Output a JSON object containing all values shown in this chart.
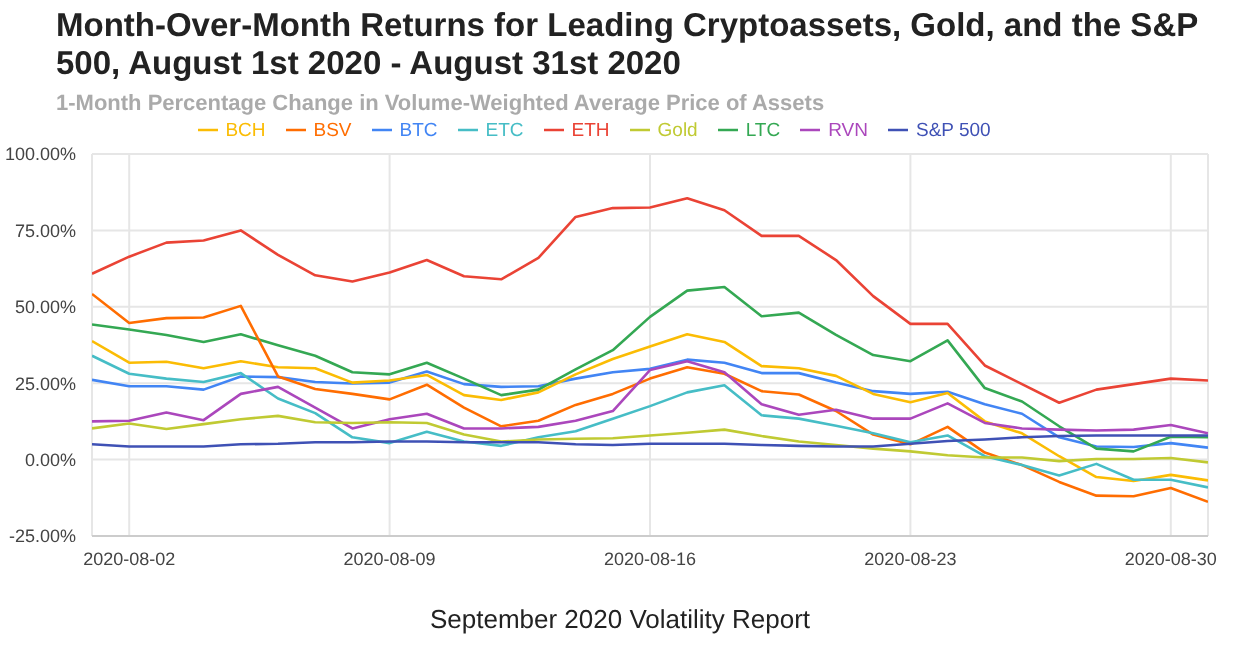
{
  "chart_data": {
    "type": "line",
    "title": "Month-Over-Month Returns for Leading Cryptoassets, Gold, and the S&P 500, August 1st 2020 - August 31st 2020",
    "subtitle": "1-Month Percentage Change in Volume-Weighted Average Price of Assets",
    "x": [
      "2020-08-01",
      "2020-08-02",
      "2020-08-03",
      "2020-08-04",
      "2020-08-05",
      "2020-08-06",
      "2020-08-07",
      "2020-08-08",
      "2020-08-09",
      "2020-08-10",
      "2020-08-11",
      "2020-08-12",
      "2020-08-13",
      "2020-08-14",
      "2020-08-15",
      "2020-08-16",
      "2020-08-17",
      "2020-08-18",
      "2020-08-19",
      "2020-08-20",
      "2020-08-21",
      "2020-08-22",
      "2020-08-23",
      "2020-08-24",
      "2020-08-25",
      "2020-08-26",
      "2020-08-27",
      "2020-08-28",
      "2020-08-29",
      "2020-08-30",
      "2020-08-31"
    ],
    "series": [
      {
        "name": "BTC",
        "color": "#4285f4",
        "values": [
          26.1,
          24,
          24,
          22.9,
          27.2,
          27,
          25.4,
          24.9,
          25.2,
          28.8,
          24.7,
          23.8,
          24,
          26.5,
          28.6,
          29.7,
          32.7,
          31.7,
          28.3,
          28.3,
          25.2,
          22.4,
          21.5,
          22.2,
          18.1,
          15,
          7.3,
          4.3,
          4.1,
          5.4,
          3.9
        ]
      },
      {
        "name": "ETH",
        "color": "#ea4335",
        "values": [
          60.8,
          66.4,
          71,
          71.7,
          75,
          67,
          60.3,
          58.3,
          61.2,
          65.3,
          60,
          59,
          66,
          79.4,
          82.3,
          82.5,
          85.5,
          81.6,
          73.2,
          73.2,
          65.3,
          53.5,
          44.4,
          44.4,
          30.8,
          24.7,
          18.6,
          22.9,
          24.7,
          26.5,
          25.9
        ]
      },
      {
        "name": "BCH",
        "color": "#fbbc04",
        "values": [
          38.8,
          31.7,
          32,
          29.9,
          32.2,
          30.2,
          29.9,
          25.2,
          25.9,
          27.7,
          21.1,
          19.5,
          22,
          27.9,
          32.9,
          37,
          41,
          38.5,
          30.6,
          29.9,
          27.4,
          21.5,
          18.8,
          21.8,
          12.5,
          8.6,
          1.1,
          -5.7,
          -7,
          -5,
          -6.8
        ]
      },
      {
        "name": "LTC",
        "color": "#34a853",
        "values": [
          44.2,
          42.6,
          40.8,
          38.5,
          41,
          37.4,
          34,
          28.6,
          27.9,
          31.7,
          26.5,
          21.1,
          22.9,
          29.5,
          35.8,
          46.7,
          55.3,
          56.5,
          46.9,
          48.1,
          40.8,
          34.2,
          32.2,
          39,
          23.4,
          19,
          10.9,
          3.6,
          2.7,
          7.5,
          7.3
        ]
      },
      {
        "name": "BSV",
        "color": "#ff6d01",
        "values": [
          54.2,
          44.7,
          46.3,
          46.5,
          50.3,
          27.2,
          23.1,
          21.5,
          19.7,
          24.5,
          17,
          10.9,
          12.7,
          17.9,
          21.5,
          26.5,
          30.2,
          28.1,
          22.4,
          21.3,
          15.9,
          8.2,
          5,
          10.7,
          2.3,
          -1.8,
          -7.3,
          -11.8,
          -12,
          -9.3,
          -13.8
        ]
      },
      {
        "name": "ETC",
        "color": "#46bdc6",
        "values": [
          34,
          28.1,
          26.5,
          25.4,
          28.3,
          20,
          15.2,
          7.3,
          5.4,
          9.1,
          5.9,
          4.5,
          7.3,
          9.3,
          13.4,
          17.5,
          22,
          24.3,
          14.5,
          13.4,
          11.1,
          8.6,
          5.7,
          7.9,
          1.1,
          -1.8,
          -5.2,
          -1.4,
          -6.6,
          -6.6,
          -9.1
        ]
      },
      {
        "name": "RVN",
        "color": "#ab47bc",
        "values": [
          12.5,
          12.7,
          15.4,
          12.9,
          21.5,
          23.8,
          17,
          10.2,
          13.2,
          15,
          10.2,
          10.2,
          10.7,
          12.7,
          15.9,
          29.3,
          32.2,
          28.6,
          18.1,
          14.7,
          16.3,
          13.4,
          13.4,
          18.4,
          12,
          10.2,
          9.8,
          9.5,
          9.8,
          11.3,
          8.6
        ]
      },
      {
        "name": "Gold",
        "color": "#c0ca33",
        "values": [
          10.2,
          11.8,
          10,
          11.6,
          13.2,
          14.3,
          12.2,
          12,
          12.2,
          12,
          8.2,
          5.9,
          6.6,
          6.8,
          7,
          7.9,
          8.8,
          9.8,
          7.7,
          5.9,
          4.8,
          3.6,
          2.7,
          1.4,
          0.7,
          0.7,
          -0.5,
          0.2,
          0.2,
          0.5,
          -0.9
        ]
      },
      {
        "name": "S&P 500",
        "color": "#3f51b5",
        "values": [
          5,
          4.3,
          4.3,
          4.3,
          5,
          5.2,
          5.7,
          5.7,
          5.9,
          5.9,
          5.7,
          5.7,
          5.7,
          5,
          4.8,
          5.2,
          5.2,
          5.2,
          4.8,
          4.5,
          4.3,
          4.3,
          5.2,
          6.1,
          6.6,
          7.3,
          7.7,
          7.9,
          7.9,
          7.9,
          7.9
        ]
      }
    ],
    "xlim": [
      "2020-08-01",
      "2020-08-31"
    ],
    "xticks": [
      "2020-08-02",
      "2020-08-09",
      "2020-08-16",
      "2020-08-23",
      "2020-08-30"
    ],
    "ylim": [
      -25,
      100
    ],
    "yticks": [
      {
        "value": -25,
        "label": "-25.00%"
      },
      {
        "value": 0,
        "label": "0.00%"
      },
      {
        "value": 25,
        "label": "25.00%"
      },
      {
        "value": 50,
        "label": "50.00%"
      },
      {
        "value": 75,
        "label": "75.00%"
      },
      {
        "value": 100,
        "label": "100.00%"
      }
    ],
    "grid": true,
    "legend": "top",
    "annotations": [
      "September 2020 Volatility Report"
    ]
  }
}
